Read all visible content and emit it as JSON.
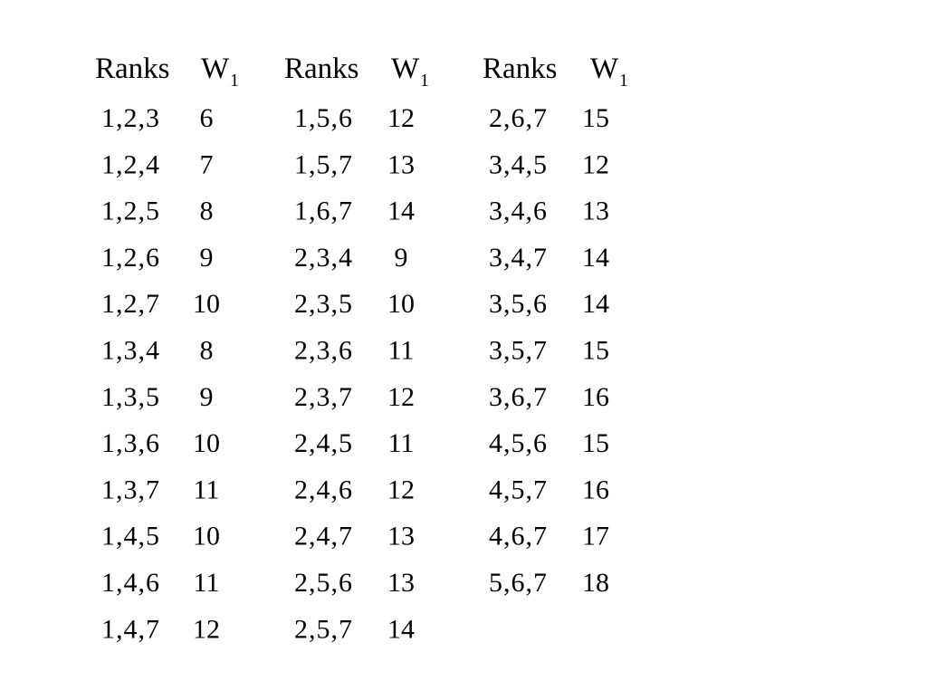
{
  "table": {
    "groups": [
      {
        "header": {
          "ranks": "Ranks",
          "w": "W",
          "w_sub": "1"
        },
        "rows": [
          [
            "1,2,3",
            6
          ],
          [
            "1,2,4",
            7
          ],
          [
            "1,2,5",
            8
          ],
          [
            "1,2,6",
            9
          ],
          [
            "1,2,7",
            10
          ],
          [
            "1,3,4",
            8
          ],
          [
            "1,3,5",
            9
          ],
          [
            "1,3,6",
            10
          ],
          [
            "1,3,7",
            11
          ],
          [
            "1,4,5",
            10
          ],
          [
            "1,4,6",
            11
          ],
          [
            "1,4,7",
            12
          ]
        ]
      },
      {
        "header": {
          "ranks": "Ranks",
          "w": "W",
          "w_sub": "1"
        },
        "rows": [
          [
            "1,5,6",
            12
          ],
          [
            "1,5,7",
            13
          ],
          [
            "1,6,7",
            14
          ],
          [
            "2,3,4",
            9
          ],
          [
            "2,3,5",
            10
          ],
          [
            "2,3,6",
            11
          ],
          [
            "2,3,7",
            12
          ],
          [
            "2,4,5",
            11
          ],
          [
            "2,4,6",
            12
          ],
          [
            "2,4,7",
            13
          ],
          [
            "2,5,6",
            13
          ],
          [
            "2,5,7",
            14
          ]
        ]
      },
      {
        "header": {
          "ranks": "Ranks",
          "w": "W",
          "w_sub": "1"
        },
        "rows": [
          [
            "2,6,7",
            15
          ],
          [
            "3,4,5",
            12
          ],
          [
            "3,4,6",
            13
          ],
          [
            "3,4,7",
            14
          ],
          [
            "3,5,6",
            14
          ],
          [
            "3,5,7",
            15
          ],
          [
            "3,6,7",
            16
          ],
          [
            "4,5,6",
            15
          ],
          [
            "4,5,7",
            16
          ],
          [
            "4,6,7",
            17
          ],
          [
            "5,6,7",
            18
          ]
        ]
      }
    ]
  }
}
